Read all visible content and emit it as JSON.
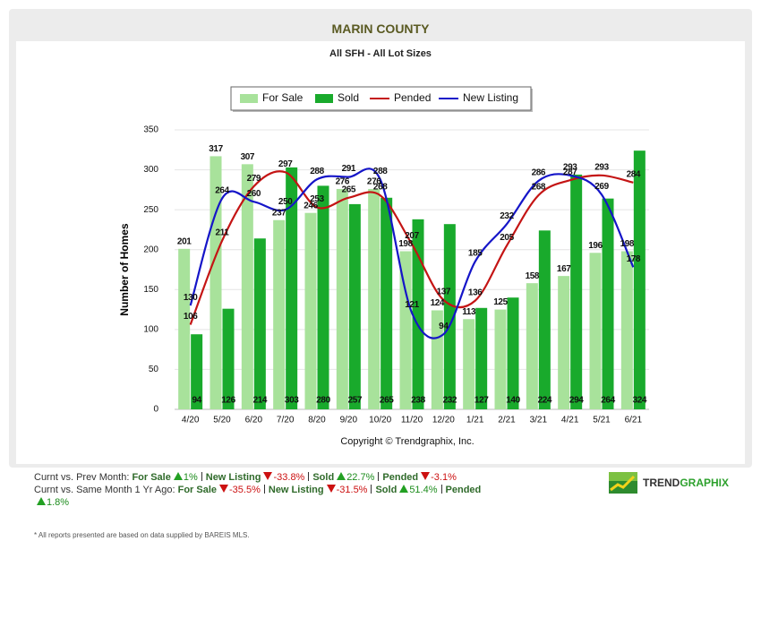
{
  "header": {
    "title": "MARIN COUNTY"
  },
  "chart_data": {
    "type": "bar",
    "subtitle": "All SFH - All Lot Sizes",
    "y_label": "Number of Homes",
    "categories": [
      "4/20",
      "5/20",
      "6/20",
      "7/20",
      "8/20",
      "9/20",
      "10/20",
      "11/20",
      "12/20",
      "1/21",
      "2/21",
      "3/21",
      "4/21",
      "5/21",
      "6/21"
    ],
    "series": [
      {
        "name": "For Sale",
        "type": "bar",
        "color": "#a8e29b",
        "label_position": "top",
        "values": [
          201,
          317,
          307,
          237,
          246,
          276,
          276,
          198,
          124,
          113,
          125,
          158,
          167,
          196,
          198
        ]
      },
      {
        "name": "Sold",
        "type": "bar",
        "color": "#19aa2c",
        "label_position": "base",
        "values": [
          94,
          126,
          214,
          303,
          280,
          257,
          265,
          238,
          232,
          127,
          140,
          224,
          294,
          264,
          324
        ]
      },
      {
        "name": "Pended",
        "type": "line",
        "color": "#c41414",
        "values": [
          106,
          211,
          279,
          297,
          253,
          265,
          268,
          207,
          137,
          136,
          205,
          268,
          287,
          293,
          284
        ]
      },
      {
        "name": "New Listing",
        "type": "line",
        "color": "#1515c8",
        "values": [
          130,
          264,
          260,
          250,
          288,
          291,
          288,
          121,
          94,
          185,
          232,
          286,
          293,
          269,
          178
        ]
      }
    ],
    "ylim": [
      0,
      350
    ],
    "yticks": [
      0,
      50,
      100,
      150,
      200,
      250,
      300,
      350
    ],
    "grid": true,
    "copyright": "Copyright © Trendgraphix, Inc."
  },
  "summary": [
    {
      "intro": "Curnt vs. Prev Month:",
      "items": [
        {
          "label": "For Sale",
          "change": "1%",
          "trend": "up"
        },
        {
          "label": "New Listing",
          "change": "-33.8%",
          "trend": "down"
        },
        {
          "label": "Sold",
          "change": "22.7%",
          "trend": "up"
        },
        {
          "label": "Pended",
          "change": "-3.1%",
          "trend": "down"
        }
      ]
    },
    {
      "intro": "Curnt vs. Same Month 1 Yr Ago:",
      "items": [
        {
          "label": "For Sale",
          "change": "-35.5%",
          "trend": "down"
        },
        {
          "label": "New Listing",
          "change": "-31.5%",
          "trend": "down"
        },
        {
          "label": "Sold",
          "change": "51.4%",
          "trend": "up"
        },
        {
          "label": "Pended",
          "change": "1.8%",
          "trend": "up"
        }
      ]
    }
  ],
  "logo": {
    "first": "TREND",
    "second": "GRAPHIX"
  },
  "disclaimer": "* All reports presented are based on data supplied by BAREIS MLS."
}
